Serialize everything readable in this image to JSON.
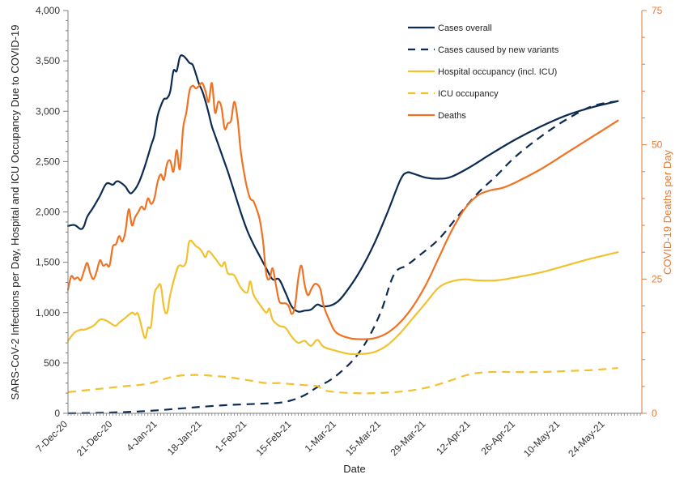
{
  "chart_data": {
    "type": "line",
    "title": "",
    "xlabel": "Date",
    "ylabel": "SARS-CoV-2 Infections per Day, Hospital and ICU Occupancy Due to COVID-19",
    "y2label": "COVID-19 Deaths per Day",
    "x_start_date": "7-Dec-20",
    "x_unit": "days since 7-Dec-20",
    "xlim": [
      0,
      180
    ],
    "ylim": [
      0,
      4000
    ],
    "y2lim": [
      0,
      75
    ],
    "x_tick_labels": [
      "7-Dec-20",
      "21-Dec-20",
      "4-Jan-21",
      "18-Jan-21",
      "1-Feb-21",
      "15-Feb-21",
      "1-Mar-21",
      "15-Mar-21",
      "29-Mar-21",
      "12-Apr-21",
      "26-Apr-21",
      "10-May-21",
      "24-May-21"
    ],
    "x_tick_days": [
      0,
      14,
      28,
      42,
      56,
      70,
      84,
      98,
      112,
      126,
      140,
      154,
      168
    ],
    "y_ticks": [
      0,
      500,
      1000,
      1500,
      2000,
      2500,
      3000,
      3500,
      4000
    ],
    "y_tick_labels": [
      "0",
      "500",
      "1,000",
      "1,500",
      "2,000",
      "2,500",
      "3,000",
      "3,500",
      "4,000"
    ],
    "y2_ticks": [
      0,
      25,
      50,
      75
    ],
    "y2_tick_labels": [
      "0",
      "25",
      "50",
      "75"
    ],
    "grid": false,
    "legend": {
      "position": "top-right",
      "entries": [
        {
          "label": "Cases overall",
          "color": "#0d2b52",
          "dash": false
        },
        {
          "label": "Cases caused by new variants",
          "color": "#0d2b52",
          "dash": true
        },
        {
          "label": "Hospital occupancy (incl. ICU)",
          "color": "#f2c12e",
          "dash": false
        },
        {
          "label": "ICU occupancy",
          "color": "#f2c12e",
          "dash": true
        },
        {
          "label": "Deaths",
          "color": "#f07222",
          "dash": false
        }
      ]
    },
    "series": [
      {
        "name": "Cases overall",
        "axis": "left",
        "color": "#0d2b52",
        "dash": false,
        "x": [
          0,
          2,
          4,
          5,
          6,
          8,
          10,
          12,
          14,
          15,
          16,
          18,
          19,
          20,
          22,
          24,
          26,
          27,
          28,
          29,
          30,
          31,
          32,
          33,
          34,
          35,
          36,
          37,
          38,
          39,
          40,
          41,
          42,
          43,
          44,
          45,
          46,
          48,
          50,
          52,
          54,
          56,
          58,
          60,
          62,
          64,
          66,
          68,
          70,
          72,
          74,
          76,
          78,
          80,
          84,
          88,
          92,
          96,
          100,
          104,
          106,
          108,
          112,
          116,
          120,
          126,
          132,
          140,
          148,
          156,
          164,
          172,
          180
        ],
        "y": [
          1860,
          1870,
          1830,
          1860,
          1950,
          2050,
          2160,
          2280,
          2270,
          2300,
          2300,
          2250,
          2200,
          2190,
          2280,
          2450,
          2660,
          2760,
          2950,
          3050,
          3120,
          3130,
          3200,
          3400,
          3400,
          3540,
          3550,
          3520,
          3480,
          3460,
          3370,
          3270,
          3200,
          3100,
          2980,
          2850,
          2760,
          2580,
          2400,
          2200,
          2000,
          1820,
          1680,
          1560,
          1440,
          1330,
          1330,
          1200,
          1060,
          1010,
          1020,
          1030,
          1080,
          1060,
          1100,
          1250,
          1450,
          1700,
          2000,
          2320,
          2390,
          2380,
          2340,
          2330,
          2350,
          2450,
          2570,
          2720,
          2850,
          2960,
          3040,
          3100,
          3150
        ]
      },
      {
        "name": "Cases caused by new variants",
        "axis": "left",
        "color": "#0d2b52",
        "dash": true,
        "x": [
          0,
          10,
          20,
          28,
          36,
          44,
          52,
          60,
          66,
          70,
          74,
          78,
          82,
          86,
          90,
          94,
          98,
          102,
          106,
          110,
          116,
          122,
          128,
          134,
          140,
          148,
          156,
          164,
          172,
          180
        ],
        "y": [
          0,
          5,
          15,
          30,
          50,
          70,
          85,
          95,
          105,
          130,
          180,
          260,
          330,
          430,
          560,
          750,
          1020,
          1380,
          1470,
          1570,
          1730,
          1960,
          2180,
          2360,
          2550,
          2750,
          2920,
          3050,
          3100,
          3120
        ]
      },
      {
        "name": "Hospital occupancy (incl. ICU)",
        "axis": "left",
        "color": "#f2c12e",
        "dash": false,
        "x": [
          0,
          2,
          4,
          5,
          6,
          8,
          10,
          12,
          14,
          15,
          16,
          18,
          20,
          21,
          22,
          24,
          25,
          26,
          27,
          28,
          29,
          30,
          31,
          32,
          34,
          35,
          36,
          37,
          38,
          40,
          41,
          42,
          43,
          44,
          46,
          48,
          49,
          50,
          52,
          54,
          56,
          57,
          58,
          60,
          62,
          63,
          64,
          66,
          68,
          70,
          72,
          74,
          76,
          78,
          80,
          84,
          88,
          92,
          96,
          100,
          104,
          108,
          112,
          116,
          120,
          124,
          128,
          134,
          140,
          148,
          156,
          164,
          172,
          180
        ],
        "y": [
          720,
          800,
          830,
          830,
          840,
          870,
          930,
          920,
          880,
          870,
          900,
          950,
          1000,
          980,
          980,
          750,
          850,
          870,
          1180,
          1250,
          1270,
          1050,
          1000,
          1180,
          1420,
          1470,
          1460,
          1510,
          1710,
          1660,
          1640,
          1600,
          1550,
          1610,
          1540,
          1460,
          1500,
          1390,
          1370,
          1250,
          1200,
          1310,
          1180,
          1080,
          1000,
          1040,
          930,
          870,
          850,
          760,
          700,
          720,
          670,
          730,
          660,
          620,
          590,
          590,
          610,
          680,
          800,
          950,
          1100,
          1250,
          1310,
          1330,
          1320,
          1320,
          1350,
          1400,
          1470,
          1540,
          1600,
          1660
        ]
      },
      {
        "name": "ICU occupancy",
        "axis": "left",
        "color": "#f2c12e",
        "dash": true,
        "x": [
          0,
          6,
          12,
          18,
          22,
          26,
          30,
          34,
          38,
          42,
          46,
          50,
          54,
          58,
          62,
          66,
          70,
          74,
          78,
          80,
          84,
          90,
          96,
          102,
          108,
          114,
          120,
          126,
          132,
          140,
          148,
          156,
          164,
          172,
          180
        ],
        "y": [
          210,
          230,
          250,
          270,
          280,
          300,
          340,
          370,
          380,
          380,
          370,
          360,
          340,
          320,
          300,
          300,
          290,
          280,
          270,
          230,
          210,
          200,
          200,
          210,
          230,
          270,
          330,
          390,
          410,
          410,
          410,
          420,
          430,
          450,
          470
        ]
      },
      {
        "name": "Deaths",
        "axis": "right",
        "color": "#f07222",
        "dash": false,
        "x": [
          0,
          1,
          2,
          3,
          4,
          5,
          6,
          7,
          8,
          9,
          10,
          11,
          12,
          13,
          14,
          15,
          16,
          17,
          18,
          19,
          20,
          21,
          22,
          23,
          24,
          25,
          26,
          27,
          28,
          29,
          30,
          31,
          32,
          33,
          34,
          35,
          36,
          37,
          38,
          39,
          40,
          41,
          42,
          43,
          44,
          45,
          46,
          47,
          48,
          49,
          50,
          51,
          52,
          53,
          54,
          55,
          56,
          57,
          58,
          59,
          60,
          61,
          62,
          63,
          64,
          65,
          66,
          67,
          68,
          69,
          70,
          71,
          72,
          73,
          74,
          75,
          76,
          77,
          78,
          79,
          80,
          82,
          84,
          88,
          92,
          96,
          100,
          104,
          108,
          112,
          116,
          120,
          124,
          128,
          132,
          136,
          140,
          148,
          156,
          164,
          172,
          180
        ],
        "y": [
          23,
          25.5,
          25,
          25.3,
          24.8,
          26.5,
          28,
          26,
          25,
          26.5,
          28.5,
          27.5,
          27.8,
          27.5,
          31,
          31.5,
          33,
          32,
          34,
          38,
          35,
          36.5,
          37.5,
          38.5,
          38,
          40,
          39,
          40,
          43,
          44.5,
          43.5,
          46.5,
          47,
          45,
          49,
          45.5,
          53,
          56,
          60,
          61,
          60.5,
          61,
          61.5,
          60,
          58,
          61.5,
          56,
          58,
          57,
          53,
          54,
          54.5,
          58,
          55,
          49,
          45,
          42,
          40,
          39.5,
          38,
          36,
          32,
          26,
          25,
          27,
          24,
          21,
          20.5,
          20.5,
          20,
          18.5,
          20,
          25,
          27.5,
          24,
          22,
          23,
          24,
          24,
          23,
          20,
          17,
          15,
          14,
          13.8,
          14,
          15,
          17,
          20,
          24,
          29,
          34,
          38,
          40.5,
          41.5,
          42,
          43,
          45.5,
          48.5,
          51.5,
          54.5,
          57
        ]
      }
    ]
  }
}
